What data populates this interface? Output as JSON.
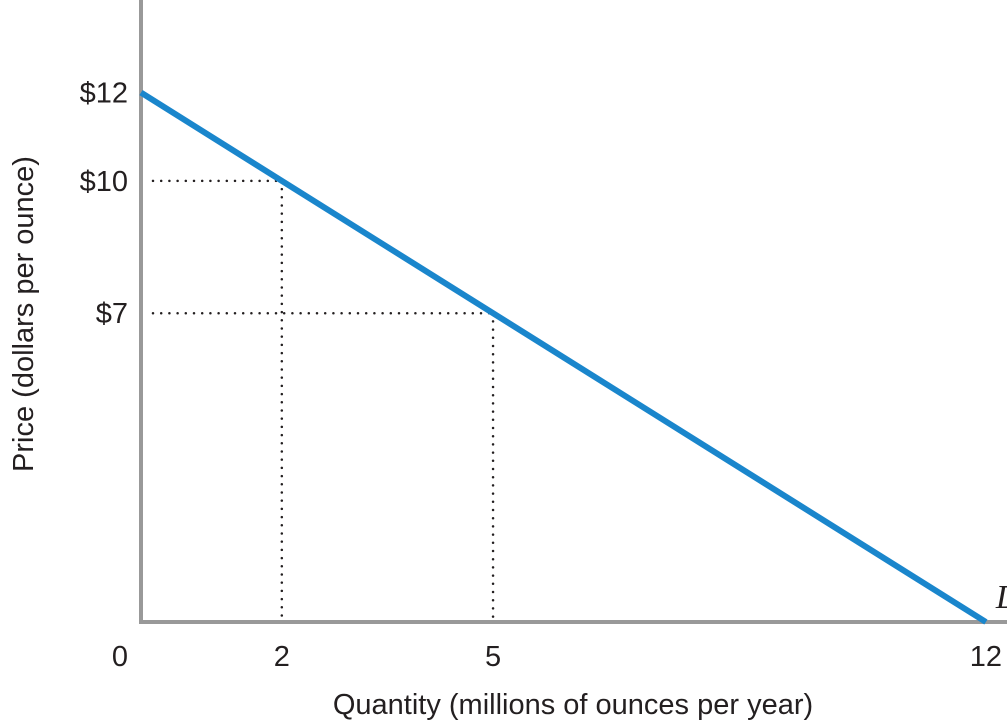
{
  "chart_data": {
    "type": "line",
    "title": "",
    "xlabel": "Quantity (millions of ounces per year)",
    "ylabel": "Price (dollars per ounce)",
    "xlim": [
      0,
      12.2
    ],
    "ylim": [
      0,
      14.1
    ],
    "grid": false,
    "origin_label": "0",
    "x_ticks": [
      {
        "value": 2,
        "label": "2"
      },
      {
        "value": 5,
        "label": "5"
      },
      {
        "value": 12,
        "label": "12"
      }
    ],
    "y_ticks": [
      {
        "value": 12,
        "label": "$12"
      },
      {
        "value": 10,
        "label": "$10"
      },
      {
        "value": 7,
        "label": "$7"
      }
    ],
    "series": [
      {
        "name": "D",
        "color": "#1a86cc",
        "points": [
          {
            "x": 0,
            "y": 12
          },
          {
            "x": 12,
            "y": 0
          }
        ]
      }
    ],
    "reference_points": [
      {
        "x": 2,
        "y": 10
      },
      {
        "x": 5,
        "y": 7
      }
    ],
    "axis_color": "#999999",
    "guide_color": "#231f20"
  }
}
